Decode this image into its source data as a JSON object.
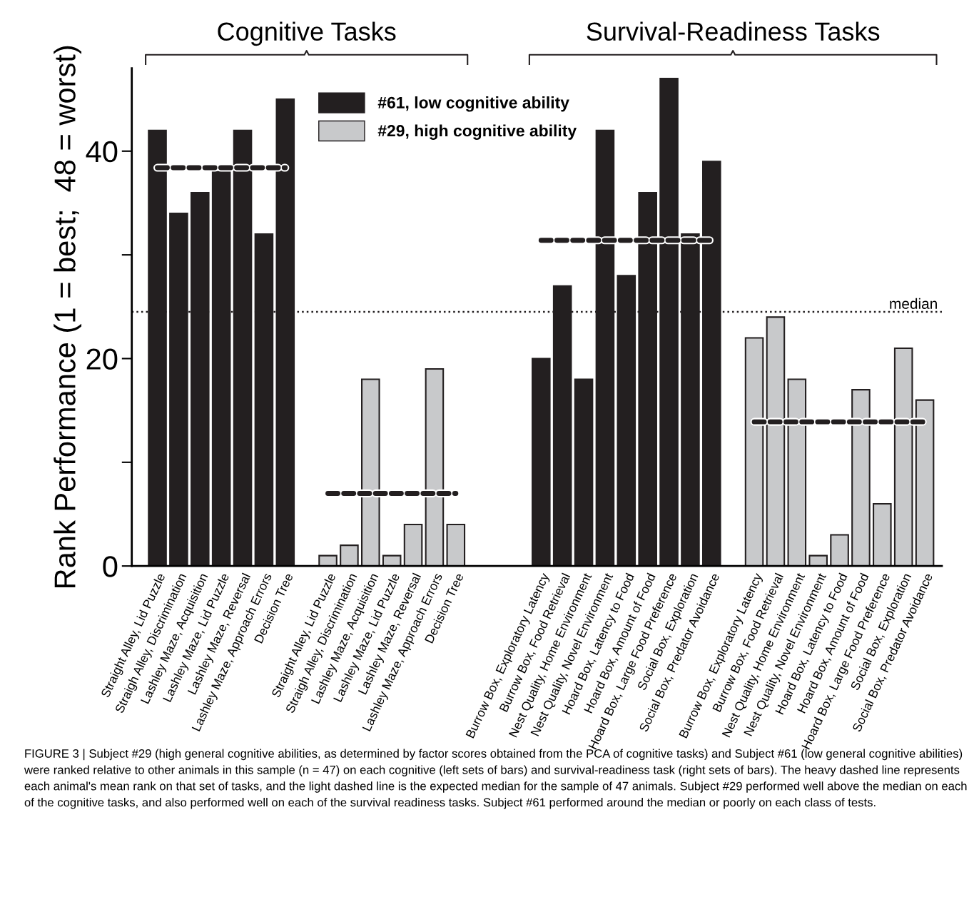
{
  "chart_data": {
    "type": "bar",
    "ylabel": "Rank Performance (1 = best;  48 = worst)",
    "categories": [
      "Straight Alley, Lid Puzzle",
      "Straigh Alley, Discrimination",
      "Lashley Maze, Acquisition",
      "Lashley Maze, Lid Puzzle",
      "Lashley Maze, Reversal",
      "Lashley Maze, Approach Errors",
      "Decision Tree",
      null,
      "Straight Alley, Lid Puzzle",
      "Straigh Alley, Discrimination",
      "Lashley Maze, Acquisition",
      "Lashley Maze, Lid Puzzle",
      "Lashley Maze, Reversal",
      "Lashley Maze, Approach Errors",
      "Decision Tree",
      null,
      null,
      null,
      "Burrow Box, Exploratory Latency",
      "Burrow Box, Food Retrieval",
      "Nest Quality, Home Environment",
      "Nest Quality, Novel Environment",
      "Hoard Box, Latency to Food",
      "Hoard Box, Amount of Food",
      "Hoard Box, Large Food Preference",
      "Social Box, Exploration",
      "Social Box, Predator Avoidance",
      null,
      "Burrow Box, Exploratory Latency",
      "Burrow Box, Food Retrieval",
      "Nest Quality, Home Environment",
      "Nest Quality, Novel Environment",
      "Hoard Box, Latency to Food",
      "Hoard Box, Amount of Food",
      "Hoard Box, Large Food Preference",
      "Social Box, Exploration",
      "Social Box, Predator Avoidance"
    ],
    "series": [
      {
        "name": "#61, low cognitive ability",
        "color": "#231f20",
        "values": [
          42,
          34,
          36,
          38,
          42,
          32,
          45,
          null,
          null,
          null,
          null,
          null,
          null,
          null,
          null,
          null,
          null,
          null,
          20,
          27,
          18,
          42,
          28,
          36,
          47,
          32,
          39,
          null,
          null,
          null,
          null,
          null,
          null,
          null,
          null,
          null,
          null
        ]
      },
      {
        "name": "#29, high cognitive ability",
        "color": "#c8c9cb",
        "values": [
          null,
          null,
          null,
          null,
          null,
          null,
          null,
          null,
          1,
          2,
          18,
          1,
          4,
          19,
          4,
          null,
          null,
          null,
          null,
          null,
          null,
          null,
          null,
          null,
          null,
          null,
          null,
          null,
          22,
          24,
          18,
          1,
          3,
          17,
          6,
          21,
          16
        ]
      },
      {
        "type": "line",
        "color": "#231f20",
        "line_style": "dashed",
        "values": [
          38.4,
          38.4,
          38.4,
          38.4,
          38.4,
          38.4,
          38.4,
          null,
          null,
          null,
          null,
          null,
          null,
          null,
          null,
          null,
          null,
          null,
          null,
          null,
          null,
          null,
          null,
          null,
          null,
          null,
          null,
          null,
          null,
          null,
          null,
          null,
          null,
          null,
          null,
          null,
          null
        ]
      },
      {
        "type": "line",
        "color": "#231f20",
        "line_style": "dashed",
        "values": [
          null,
          null,
          null,
          null,
          null,
          null,
          null,
          null,
          7,
          7,
          7,
          7,
          7,
          7,
          7,
          null,
          null,
          null,
          null,
          null,
          null,
          null,
          null,
          null,
          null,
          null,
          null,
          null,
          null,
          null,
          null,
          null,
          null,
          null,
          null,
          null,
          null
        ]
      },
      {
        "type": "line",
        "color": "#231f20",
        "line_style": "dashed",
        "values": [
          null,
          null,
          null,
          null,
          null,
          null,
          null,
          null,
          null,
          null,
          null,
          null,
          null,
          null,
          null,
          null,
          null,
          null,
          31.4,
          31.4,
          31.4,
          31.4,
          31.4,
          31.4,
          31.4,
          31.4,
          31.4,
          null,
          null,
          null,
          null,
          null,
          null,
          null,
          null,
          null,
          null
        ]
      },
      {
        "type": "line",
        "color": "#231f20",
        "line_style": "dashed",
        "values": [
          null,
          null,
          null,
          null,
          null,
          null,
          null,
          null,
          null,
          null,
          null,
          null,
          null,
          null,
          null,
          null,
          null,
          null,
          null,
          null,
          null,
          null,
          null,
          null,
          null,
          null,
          null,
          null,
          13.9,
          13.9,
          13.9,
          13.9,
          13.9,
          13.9,
          13.9,
          13.9,
          13.9
        ]
      }
    ],
    "ylim": [
      0,
      48
    ],
    "yticks": [
      0,
      {
        "value": 10,
        "label": null
      },
      20,
      {
        "value": 30,
        "label": null
      },
      40
    ],
    "ref_lines": [
      {
        "axis": "y",
        "value": 24.5,
        "label": "median",
        "color": "#231f20",
        "line_style": "dotted"
      }
    ],
    "legend": "top",
    "grid": false,
    "annotations": [
      "Cognitive Tasks",
      "Survival-Readiness Tasks",
      "FIGURE 3 | Subject #29 (high general cognitive abilities, as determined by factor scores obtained from the PCA of cognitive tasks) and Subject #61 (low general cognitive abilities) were ranked relative to other animals in this sample (n = 47) on each cognitive (left sets of bars) and survival-readiness task (right sets of bars). The heavy dashed line represents each animal's mean rank on that set of tasks, and the light dashed line is the expected median for the sample of 47 animals. Subject #29 performed well above the median on each of the cognitive tasks, and also performed well on each of the survival readiness tasks. Subject #61 performed around the median or poorly on each class of tests."
    ]
  }
}
